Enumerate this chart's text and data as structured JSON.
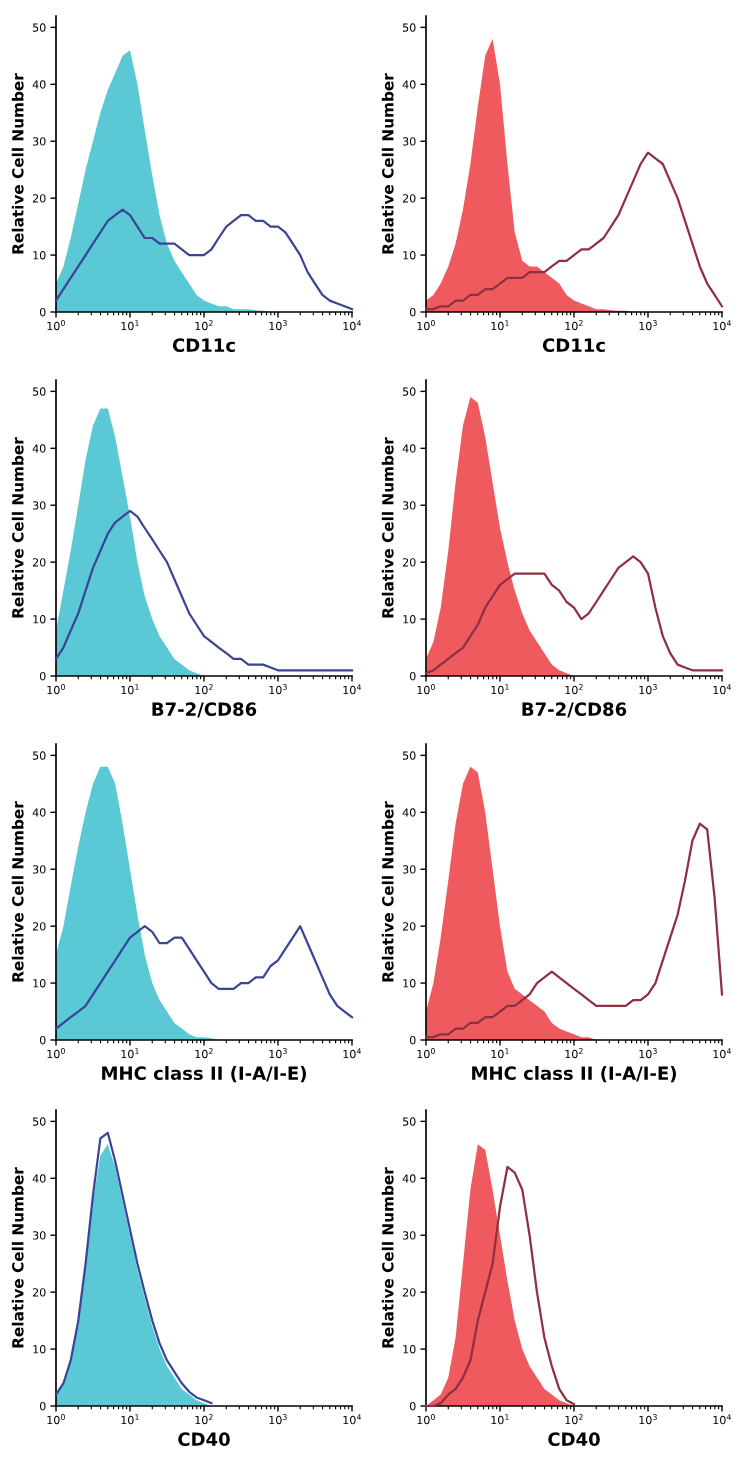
{
  "chart_data": [
    {
      "type": "area",
      "xlabel": "CD11c",
      "ylabel": "Relative Cell Number",
      "log": "x",
      "xlim": [
        1,
        10000
      ],
      "ylim": [
        0,
        52
      ],
      "yticks": [
        0,
        10,
        20,
        30,
        40,
        50
      ],
      "xticks": [
        {
          "value": 1,
          "label": "10$^{0}$"
        },
        {
          "value": 10,
          "label": "10$^{1}$"
        },
        {
          "value": 100,
          "label": "10$^{2}$"
        },
        {
          "value": 1000,
          "label": "10$^{3}$"
        },
        {
          "value": 10000,
          "label": "10$^{4}$"
        }
      ],
      "grid": false,
      "x": [
        1,
        1.26,
        1.58,
        2,
        2.51,
        3.16,
        3.98,
        5.01,
        6.31,
        7.94,
        10,
        12.6,
        15.8,
        20,
        25.1,
        31.6,
        39.8,
        50.1,
        63.1,
        79.4,
        100,
        126,
        158,
        200,
        251,
        316,
        398,
        501,
        631,
        794,
        1000,
        1259,
        1585,
        1995,
        2512,
        3162,
        3981,
        5012,
        6310,
        7943,
        10000
      ],
      "series": [
        {
          "type": "area",
          "color": "#5bc8d6",
          "values": [
            5,
            8,
            13,
            19,
            25,
            30,
            35,
            39,
            42,
            45,
            46,
            40,
            32,
            24,
            17,
            12,
            9,
            7,
            5,
            3,
            2,
            1.5,
            1,
            1,
            0.5,
            0.5,
            0.5,
            0.3,
            0.2,
            0,
            0,
            0,
            0,
            0,
            0,
            0,
            0,
            0,
            0,
            0,
            0
          ]
        },
        {
          "type": "line",
          "color": "#3b4596",
          "values": [
            2,
            4,
            6,
            8,
            10,
            12,
            14,
            16,
            17,
            18,
            17,
            15,
            13,
            13,
            12,
            12,
            12,
            11,
            10,
            10,
            10,
            11,
            13,
            15,
            16,
            17,
            17,
            16,
            16,
            15,
            15,
            14,
            12,
            10,
            7,
            5,
            3,
            2,
            1.5,
            1,
            0.5
          ]
        }
      ]
    },
    {
      "type": "area",
      "xlabel": "CD11c",
      "ylabel": "Relative Cell Number",
      "log": "x",
      "xlim": [
        1,
        10000
      ],
      "ylim": [
        0,
        52
      ],
      "yticks": [
        0,
        10,
        20,
        30,
        40,
        50
      ],
      "xticks": [
        {
          "value": 1,
          "label": "10$^{0}$"
        },
        {
          "value": 10,
          "label": "10$^{1}$"
        },
        {
          "value": 100,
          "label": "10$^{2}$"
        },
        {
          "value": 1000,
          "label": "10$^{3}$"
        },
        {
          "value": 10000,
          "label": "10$^{4}$"
        }
      ],
      "grid": false,
      "x": [
        1,
        1.26,
        1.58,
        2,
        2.51,
        3.16,
        3.98,
        5.01,
        6.31,
        7.94,
        10,
        12.6,
        15.8,
        20,
        25.1,
        31.6,
        39.8,
        50.1,
        63.1,
        79.4,
        100,
        126,
        158,
        200,
        251,
        316,
        398,
        501,
        631,
        794,
        1000,
        1259,
        1585,
        1995,
        2512,
        3162,
        3981,
        5012,
        6310,
        7943,
        10000
      ],
      "series": [
        {
          "type": "area",
          "color": "#ef5a5e",
          "values": [
            2,
            3,
            5,
            8,
            12,
            18,
            26,
            36,
            45,
            48,
            40,
            26,
            14,
            9,
            8,
            8,
            7,
            6,
            5,
            3,
            2,
            1.5,
            1,
            0.5,
            0.5,
            0.3,
            0.2,
            0.2,
            0,
            0,
            0,
            0,
            0,
            0,
            0,
            0,
            0,
            0,
            0,
            0,
            0
          ]
        },
        {
          "type": "line",
          "color": "#8e2f42",
          "values": [
            0.5,
            0.5,
            1,
            1,
            2,
            2,
            3,
            3,
            4,
            4,
            5,
            6,
            6,
            6,
            7,
            7,
            7,
            8,
            9,
            9,
            10,
            11,
            11,
            12,
            13,
            15,
            17,
            20,
            23,
            26,
            28,
            27,
            26,
            23,
            20,
            16,
            12,
            8,
            5,
            3,
            1
          ]
        }
      ]
    },
    {
      "type": "area",
      "xlabel": "B7-2/CD86",
      "ylabel": "Relative Cell Number",
      "log": "x",
      "xlim": [
        1,
        10000
      ],
      "ylim": [
        0,
        52
      ],
      "yticks": [
        0,
        10,
        20,
        30,
        40,
        50
      ],
      "xticks": [
        {
          "value": 1,
          "label": "10$^{0}$"
        },
        {
          "value": 10,
          "label": "10$^{1}$"
        },
        {
          "value": 100,
          "label": "10$^{2}$"
        },
        {
          "value": 1000,
          "label": "10$^{3}$"
        },
        {
          "value": 10000,
          "label": "10$^{4}$"
        }
      ],
      "grid": false,
      "x": [
        1,
        1.26,
        1.58,
        2,
        2.51,
        3.16,
        3.98,
        5.01,
        6.31,
        7.94,
        10,
        12.6,
        15.8,
        20,
        25.1,
        31.6,
        39.8,
        50.1,
        63.1,
        79.4,
        100,
        126,
        158,
        200,
        251,
        316,
        398,
        501,
        631,
        794,
        1000,
        1259,
        1585,
        1995,
        2512,
        3162,
        3981,
        5012,
        6310,
        7943,
        10000
      ],
      "series": [
        {
          "type": "area",
          "color": "#5bc8d6",
          "values": [
            8,
            15,
            22,
            30,
            38,
            44,
            47,
            47,
            42,
            35,
            28,
            20,
            14,
            10,
            7,
            5,
            3,
            2,
            1,
            0.5,
            0,
            0,
            0,
            0,
            0,
            0,
            0,
            0,
            0,
            0,
            0,
            0,
            0,
            0,
            0,
            0,
            0,
            0,
            0,
            0,
            0
          ]
        },
        {
          "type": "line",
          "color": "#3b4596",
          "values": [
            3,
            5,
            8,
            11,
            15,
            19,
            22,
            25,
            27,
            28,
            29,
            28,
            26,
            24,
            22,
            20,
            17,
            14,
            11,
            9,
            7,
            6,
            5,
            4,
            3,
            3,
            2,
            2,
            2,
            1.5,
            1,
            1,
            1,
            1,
            1,
            1,
            1,
            1,
            1,
            1,
            1
          ]
        }
      ]
    },
    {
      "type": "area",
      "xlabel": "B7-2/CD86",
      "ylabel": "Relative Cell Number",
      "log": "x",
      "xlim": [
        1,
        10000
      ],
      "ylim": [
        0,
        52
      ],
      "yticks": [
        0,
        10,
        20,
        30,
        40,
        50
      ],
      "xticks": [
        {
          "value": 1,
          "label": "10$^{0}$"
        },
        {
          "value": 10,
          "label": "10$^{1}$"
        },
        {
          "value": 100,
          "label": "10$^{2}$"
        },
        {
          "value": 1000,
          "label": "10$^{3}$"
        },
        {
          "value": 10000,
          "label": "10$^{4}$"
        }
      ],
      "grid": false,
      "x": [
        1,
        1.26,
        1.58,
        2,
        2.51,
        3.16,
        3.98,
        5.01,
        6.31,
        7.94,
        10,
        12.6,
        15.8,
        20,
        25.1,
        31.6,
        39.8,
        50.1,
        63.1,
        79.4,
        100,
        126,
        158,
        200,
        251,
        316,
        398,
        501,
        631,
        794,
        1000,
        1259,
        1585,
        1995,
        2512,
        3162,
        3981,
        5012,
        6310,
        7943,
        10000
      ],
      "series": [
        {
          "type": "area",
          "color": "#ef5a5e",
          "values": [
            3,
            6,
            12,
            22,
            34,
            44,
            49,
            48,
            42,
            34,
            26,
            20,
            15,
            11,
            8,
            6,
            4,
            2,
            1,
            0.5,
            0,
            0,
            0,
            0,
            0,
            0,
            0,
            0,
            0,
            0,
            0,
            0,
            0,
            0,
            0,
            0,
            0,
            0,
            0,
            0,
            0
          ]
        },
        {
          "type": "line",
          "color": "#8e2f42",
          "values": [
            0.5,
            1,
            2,
            3,
            4,
            5,
            7,
            9,
            12,
            14,
            16,
            17,
            18,
            18,
            18,
            18,
            18,
            16,
            15,
            13,
            12,
            10,
            11,
            13,
            15,
            17,
            19,
            20,
            21,
            20,
            18,
            12,
            7,
            4,
            2,
            1.5,
            1,
            1,
            1,
            1,
            1
          ]
        }
      ]
    },
    {
      "type": "area",
      "xlabel": "MHC class II (I-A/I-E)",
      "ylabel": "Relative Cell Number",
      "log": "x",
      "xlim": [
        1,
        10000
      ],
      "ylim": [
        0,
        52
      ],
      "yticks": [
        0,
        10,
        20,
        30,
        40,
        50
      ],
      "xticks": [
        {
          "value": 1,
          "label": "10$^{0}$"
        },
        {
          "value": 10,
          "label": "10$^{1}$"
        },
        {
          "value": 100,
          "label": "10$^{2}$"
        },
        {
          "value": 1000,
          "label": "10$^{3}$"
        },
        {
          "value": 10000,
          "label": "10$^{4}$"
        }
      ],
      "grid": false,
      "x": [
        1,
        1.26,
        1.58,
        2,
        2.51,
        3.16,
        3.98,
        5.01,
        6.31,
        7.94,
        10,
        12.6,
        15.8,
        20,
        25.1,
        31.6,
        39.8,
        50.1,
        63.1,
        79.4,
        100,
        126,
        158,
        200,
        251,
        316,
        398,
        501,
        631,
        794,
        1000,
        1259,
        1585,
        1995,
        2512,
        3162,
        3981,
        5012,
        6310,
        7943,
        10000
      ],
      "series": [
        {
          "type": "area",
          "color": "#5bc8d6",
          "values": [
            15,
            20,
            27,
            34,
            40,
            45,
            48,
            48,
            45,
            38,
            30,
            22,
            15,
            10,
            7,
            5,
            3,
            2,
            1,
            0.5,
            0.5,
            0.3,
            0,
            0,
            0,
            0,
            0,
            0,
            0,
            0,
            0,
            0,
            0,
            0,
            0,
            0,
            0,
            0,
            0,
            0,
            0
          ]
        },
        {
          "type": "line",
          "color": "#3b4596",
          "values": [
            2,
            3,
            4,
            5,
            6,
            8,
            10,
            12,
            14,
            16,
            18,
            19,
            20,
            19,
            17,
            17,
            18,
            18,
            16,
            14,
            12,
            10,
            9,
            9,
            9,
            10,
            10,
            11,
            11,
            13,
            14,
            16,
            18,
            20,
            17,
            14,
            11,
            8,
            6,
            5,
            4
          ]
        }
      ]
    },
    {
      "type": "area",
      "xlabel": "MHC class II (I-A/I-E)",
      "ylabel": "Relative Cell Number",
      "log": "x",
      "xlim": [
        1,
        10000
      ],
      "ylim": [
        0,
        52
      ],
      "yticks": [
        0,
        10,
        20,
        30,
        40,
        50
      ],
      "xticks": [
        {
          "value": 1,
          "label": "10$^{0}$"
        },
        {
          "value": 10,
          "label": "10$^{1}$"
        },
        {
          "value": 100,
          "label": "10$^{2}$"
        },
        {
          "value": 1000,
          "label": "10$^{3}$"
        },
        {
          "value": 10000,
          "label": "10$^{4}$"
        }
      ],
      "grid": false,
      "x": [
        1,
        1.26,
        1.58,
        2,
        2.51,
        3.16,
        3.98,
        5.01,
        6.31,
        7.94,
        10,
        12.6,
        15.8,
        20,
        25.1,
        31.6,
        39.8,
        50.1,
        63.1,
        79.4,
        100,
        126,
        158,
        200,
        251,
        316,
        398,
        501,
        631,
        794,
        1000,
        1259,
        1585,
        1995,
        2512,
        3162,
        3981,
        5012,
        6310,
        7943,
        10000
      ],
      "series": [
        {
          "type": "area",
          "color": "#ef5a5e",
          "values": [
            5,
            10,
            18,
            28,
            38,
            45,
            48,
            47,
            40,
            30,
            20,
            12,
            9,
            8,
            7,
            6,
            5,
            3,
            2,
            1.5,
            1,
            0.5,
            0.5,
            0,
            0,
            0,
            0,
            0,
            0,
            0,
            0,
            0,
            0,
            0,
            0,
            0,
            0,
            0,
            0,
            0,
            0
          ]
        },
        {
          "type": "line",
          "color": "#8e2f42",
          "values": [
            0.5,
            0.5,
            1,
            1,
            2,
            2,
            3,
            3,
            4,
            4,
            5,
            6,
            6,
            7,
            8,
            10,
            11,
            12,
            11,
            10,
            9,
            8,
            7,
            6,
            6,
            6,
            6,
            6,
            7,
            7,
            8,
            10,
            14,
            18,
            22,
            28,
            35,
            38,
            37,
            25,
            8
          ]
        }
      ]
    },
    {
      "type": "area",
      "xlabel": "CD40",
      "ylabel": "Relative Cell Number",
      "log": "x",
      "xlim": [
        1,
        10000
      ],
      "ylim": [
        0,
        52
      ],
      "yticks": [
        0,
        10,
        20,
        30,
        40,
        50
      ],
      "xticks": [
        {
          "value": 1,
          "label": "10$^{0}$"
        },
        {
          "value": 10,
          "label": "10$^{1}$"
        },
        {
          "value": 100,
          "label": "10$^{2}$"
        },
        {
          "value": 1000,
          "label": "10$^{3}$"
        },
        {
          "value": 10000,
          "label": "10$^{4}$"
        }
      ],
      "grid": false,
      "x": [
        1,
        1.26,
        1.58,
        2,
        2.51,
        3.16,
        3.98,
        5.01,
        6.31,
        7.94,
        10,
        12.6,
        15.8,
        20,
        25.1,
        31.6,
        39.8,
        50.1,
        63.1,
        79.4,
        100,
        126,
        158,
        200,
        251,
        316,
        398,
        501,
        631,
        794,
        1000,
        1259,
        1585,
        1995,
        2512,
        3162,
        3981,
        5012,
        6310,
        7943,
        10000
      ],
      "series": [
        {
          "type": "area",
          "color": "#5bc8d6",
          "values": [
            2,
            4,
            8,
            15,
            25,
            36,
            44,
            46,
            42,
            36,
            30,
            24,
            19,
            14,
            10,
            7,
            5,
            3,
            2,
            1,
            0.5,
            0,
            0,
            0,
            0,
            0,
            0,
            0,
            0,
            0,
            0,
            0,
            0,
            0,
            0,
            0,
            0,
            0,
            0,
            0,
            0
          ]
        },
        {
          "type": "line",
          "color": "#3b4596",
          "values": [
            2,
            4,
            8,
            15,
            25,
            37,
            47,
            48,
            43,
            37,
            31,
            25,
            20,
            15,
            11,
            8,
            6,
            4,
            2.5,
            1.5,
            1,
            0.5,
            null,
            null,
            null,
            null,
            null,
            null,
            null,
            null,
            null,
            null,
            null,
            null,
            null,
            null,
            null,
            null,
            null,
            null,
            null
          ]
        }
      ]
    },
    {
      "type": "area",
      "xlabel": "CD40",
      "ylabel": "Relative Cell Number",
      "log": "x",
      "xlim": [
        1,
        10000
      ],
      "ylim": [
        0,
        52
      ],
      "yticks": [
        0,
        10,
        20,
        30,
        40,
        50
      ],
      "xticks": [
        {
          "value": 1,
          "label": "10$^{0}$"
        },
        {
          "value": 10,
          "label": "10$^{1}$"
        },
        {
          "value": 100,
          "label": "10$^{2}$"
        },
        {
          "value": 1000,
          "label": "10$^{3}$"
        },
        {
          "value": 10000,
          "label": "10$^{4}$"
        }
      ],
      "grid": false,
      "x": [
        1,
        1.26,
        1.58,
        2,
        2.51,
        3.16,
        3.98,
        5.01,
        6.31,
        7.94,
        10,
        12.6,
        15.8,
        20,
        25.1,
        31.6,
        39.8,
        50.1,
        63.1,
        79.4,
        100,
        126,
        158,
        200,
        251,
        316,
        398,
        501,
        631,
        794,
        1000,
        1259,
        1585,
        1995,
        2512,
        3162,
        3981,
        5012,
        6310,
        7943,
        10000
      ],
      "series": [
        {
          "type": "area",
          "color": "#ef5a5e",
          "values": [
            0,
            1,
            2,
            5,
            12,
            25,
            38,
            46,
            45,
            38,
            30,
            22,
            15,
            10,
            7,
            5,
            3,
            2,
            1,
            0.5,
            0,
            0,
            0,
            0,
            0,
            0,
            0,
            0,
            0,
            0,
            0,
            0,
            0,
            0,
            0,
            0,
            0,
            0,
            0,
            0,
            0
          ]
        },
        {
          "type": "line",
          "color": "#8e2f42",
          "values": [
            0,
            0,
            0.5,
            2,
            3,
            5,
            8,
            15,
            20,
            25,
            35,
            42,
            41,
            38,
            30,
            20,
            12,
            7,
            3,
            1,
            0.3,
            null,
            null,
            null,
            null,
            null,
            null,
            null,
            null,
            null,
            null,
            null,
            null,
            null,
            null,
            null,
            null,
            null,
            null,
            null,
            null
          ]
        }
      ]
    }
  ]
}
